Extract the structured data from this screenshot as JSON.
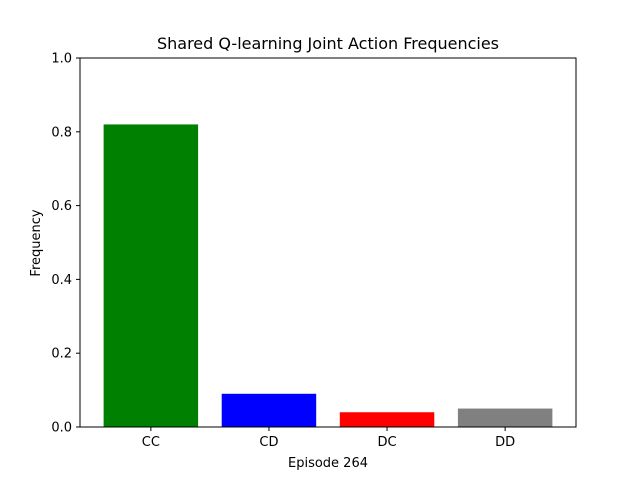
{
  "chart_data": {
    "type": "bar",
    "title": "Shared Q-learning Joint Action Frequencies",
    "xlabel": "Episode 264",
    "ylabel": "Frequency",
    "categories": [
      "CC",
      "CD",
      "DC",
      "DD"
    ],
    "values": [
      0.82,
      0.09,
      0.04,
      0.05
    ],
    "colors": [
      "#008000",
      "#0000ff",
      "#ff0000",
      "#808080"
    ],
    "ylim": [
      0,
      1.0
    ],
    "yticks": [
      "0.0",
      "0.2",
      "0.4",
      "0.6",
      "0.8",
      "1.0"
    ],
    "grid": false,
    "legend": "none"
  }
}
